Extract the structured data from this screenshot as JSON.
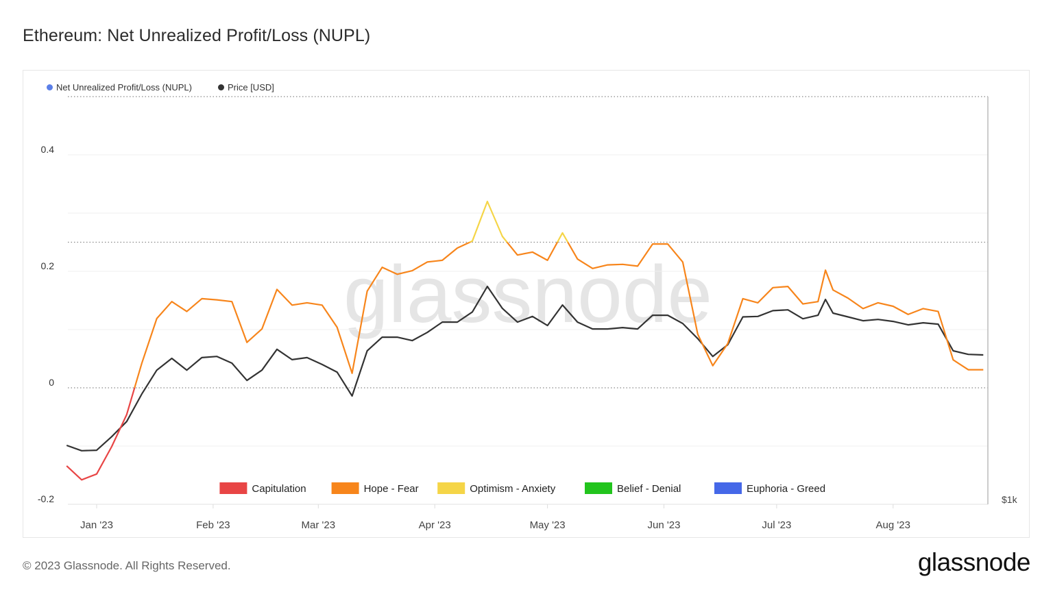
{
  "title": "Ethereum: Net Unrealized Profit/Loss (NUPL)",
  "footer": "© 2023 Glassnode. All Rights Reserved.",
  "logo": "glassnode",
  "watermark": "glassnode",
  "chart_data": {
    "type": "line",
    "title": "Ethereum: Net Unrealized Profit/Loss (NUPL)",
    "legend": [
      {
        "name": "Net Unrealized Profit/Loss (NUPL)",
        "color": "#5b7fe8"
      },
      {
        "name": "Price [USD]",
        "color": "#333333"
      }
    ],
    "legend_position": "top-left",
    "grid": true,
    "ylim": [
      -0.2,
      0.5
    ],
    "yticks": [
      {
        "value": 0.4,
        "label": "0.4"
      },
      {
        "value": 0.2,
        "label": "0.2"
      },
      {
        "value": 0,
        "label": "0"
      },
      {
        "value": -0.2,
        "label": "-0.2"
      }
    ],
    "price_axis": {
      "scale": "log",
      "tick_label": "$1k",
      "tick_value": 1000
    },
    "xticks": [
      {
        "date": "2023-01-01",
        "label": "Jan '23"
      },
      {
        "date": "2023-02-01",
        "label": "Feb '23"
      },
      {
        "date": "2023-03-01",
        "label": "Mar '23"
      },
      {
        "date": "2023-04-01",
        "label": "Apr '23"
      },
      {
        "date": "2023-05-01",
        "label": "May '23"
      },
      {
        "date": "2023-06-01",
        "label": "Jun '23"
      },
      {
        "date": "2023-07-01",
        "label": "Jul '23"
      },
      {
        "date": "2023-08-01",
        "label": "Aug '23"
      }
    ],
    "zones": [
      {
        "name": "Capitulation",
        "color": "#e84545",
        "range": [
          -1,
          0
        ]
      },
      {
        "name": "Hope - Fear",
        "color": "#f7851b",
        "range": [
          0,
          0.25
        ]
      },
      {
        "name": "Optimism - Anxiety",
        "color": "#f5d547",
        "range": [
          0.25,
          0.5
        ]
      },
      {
        "name": "Belief - Denial",
        "color": "#22c41d",
        "range": [
          0.5,
          0.75
        ]
      },
      {
        "name": "Euphoria - Greed",
        "color": "#4568e8",
        "range": [
          0.75,
          1
        ]
      }
    ],
    "x": [
      "2022-12-24",
      "2022-12-28",
      "2023-01-01",
      "2023-01-05",
      "2023-01-09",
      "2023-01-13",
      "2023-01-17",
      "2023-01-21",
      "2023-01-25",
      "2023-01-29",
      "2023-02-02",
      "2023-02-06",
      "2023-02-10",
      "2023-02-14",
      "2023-02-18",
      "2023-02-22",
      "2023-02-26",
      "2023-03-02",
      "2023-03-06",
      "2023-03-10",
      "2023-03-14",
      "2023-03-18",
      "2023-03-22",
      "2023-03-26",
      "2023-03-30",
      "2023-04-03",
      "2023-04-07",
      "2023-04-11",
      "2023-04-15",
      "2023-04-19",
      "2023-04-23",
      "2023-04-27",
      "2023-05-01",
      "2023-05-05",
      "2023-05-09",
      "2023-05-13",
      "2023-05-17",
      "2023-05-21",
      "2023-05-25",
      "2023-05-29",
      "2023-06-02",
      "2023-06-06",
      "2023-06-10",
      "2023-06-14",
      "2023-06-18",
      "2023-06-22",
      "2023-06-26",
      "2023-06-30",
      "2023-07-04",
      "2023-07-08",
      "2023-07-12",
      "2023-07-14",
      "2023-07-16",
      "2023-07-20",
      "2023-07-24",
      "2023-07-28",
      "2023-08-01",
      "2023-08-05",
      "2023-08-09",
      "2023-08-13",
      "2023-08-17",
      "2023-08-21",
      "2023-08-25"
    ],
    "series": [
      {
        "name": "Net Unrealized Profit/Loss (NUPL)",
        "values": [
          -0.134,
          -0.158,
          -0.148,
          -0.101,
          -0.046,
          0.042,
          0.119,
          0.148,
          0.131,
          0.153,
          0.151,
          0.148,
          0.078,
          0.101,
          0.169,
          0.142,
          0.146,
          0.142,
          0.104,
          0.025,
          0.166,
          0.207,
          0.195,
          0.201,
          0.216,
          0.219,
          0.24,
          0.252,
          0.32,
          0.26,
          0.228,
          0.233,
          0.219,
          0.266,
          0.221,
          0.205,
          0.211,
          0.212,
          0.209,
          0.247,
          0.247,
          0.216,
          0.092,
          0.038,
          0.076,
          0.153,
          0.146,
          0.172,
          0.174,
          0.144,
          0.148,
          0.202,
          0.168,
          0.154,
          0.136,
          0.146,
          0.14,
          0.126,
          0.136,
          0.131,
          0.048,
          0.031,
          0.031
        ]
      },
      {
        "name": "Price [USD]",
        "values": [
          1212,
          1191,
          1193,
          1247,
          1310,
          1433,
          1549,
          1610,
          1549,
          1614,
          1620,
          1585,
          1498,
          1549,
          1658,
          1603,
          1614,
          1578,
          1539,
          1424,
          1650,
          1725,
          1725,
          1706,
          1752,
          1812,
          1812,
          1873,
          2036,
          1895,
          1812,
          1846,
          1792,
          1916,
          1812,
          1772,
          1772,
          1780,
          1772,
          1853,
          1853,
          1804,
          1717,
          1620,
          1683,
          1843,
          1846,
          1881,
          1886,
          1832,
          1853,
          1951,
          1866,
          1843,
          1820,
          1828,
          1816,
          1796,
          1808,
          1800,
          1650,
          1631,
          1628
        ]
      }
    ]
  }
}
